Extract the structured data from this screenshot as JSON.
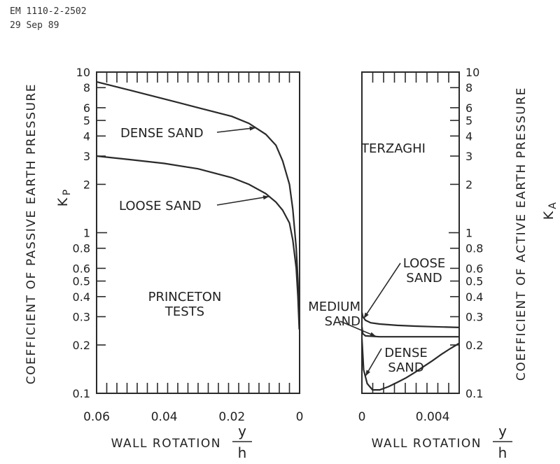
{
  "header": {
    "doc_id": "EM 1110-2-2502",
    "date": "29 Sep 89"
  },
  "chart_data": [
    {
      "type": "line",
      "panel": "passive",
      "ylabel": "COEFFICIENT OF PASSIVE EARTH PRESSURE",
      "ylabel_symbol": "K",
      "ylabel_sub": "P",
      "xlabel": "WALL ROTATION",
      "xlabel_num": "y",
      "xlabel_den": "h",
      "xlim": [
        0.06,
        0
      ],
      "ylim": [
        0.1,
        10
      ],
      "yscale": "log",
      "x_ticks": [
        "0.06",
        "0.04",
        "0.02",
        "0"
      ],
      "y_ticks": [
        "0.1",
        "0.2",
        "0.3",
        "0.4",
        "0.5",
        "0.6",
        "0.8",
        "1",
        "2",
        "3",
        "4",
        "5",
        "6",
        "8",
        "10"
      ],
      "annotation": [
        "PRINCETON",
        "TESTS"
      ],
      "series": [
        {
          "name": "DENSE SAND",
          "x": [
            0.06,
            0.05,
            0.04,
            0.03,
            0.02,
            0.015,
            0.01,
            0.007,
            0.005,
            0.003,
            0.002,
            0.001,
            0.0005,
            0.0001
          ],
          "y": [
            8.7,
            7.7,
            6.8,
            6.0,
            5.3,
            4.8,
            4.1,
            3.5,
            2.8,
            2.0,
            1.4,
            0.8,
            0.5,
            0.28
          ]
        },
        {
          "name": "LOOSE SAND",
          "x": [
            0.06,
            0.05,
            0.04,
            0.03,
            0.02,
            0.015,
            0.01,
            0.007,
            0.005,
            0.003,
            0.002,
            0.001,
            0.0005,
            0.0001
          ],
          "y": [
            3.0,
            2.85,
            2.7,
            2.5,
            2.2,
            2.0,
            1.75,
            1.55,
            1.38,
            1.15,
            0.9,
            0.6,
            0.4,
            0.25
          ]
        }
      ]
    },
    {
      "type": "line",
      "panel": "active",
      "ylabel": "COEFFICIENT OF ACTIVE EARTH PRESSURE",
      "ylabel_symbol": "K",
      "ylabel_sub": "A",
      "xlabel": "WALL ROTATION",
      "xlabel_num": "y",
      "xlabel_den": "h",
      "xlim": [
        0,
        0.0055
      ],
      "ylim": [
        0.1,
        10
      ],
      "yscale": "log",
      "x_ticks": [
        "0",
        "0.004"
      ],
      "y_ticks": [
        "0.1",
        "0.2",
        "0.3",
        "0.4",
        "0.5",
        "0.6",
        "0.8",
        "1",
        "2",
        "3",
        "4",
        "5",
        "6",
        "8",
        "10"
      ],
      "annotation": [
        "TERZAGHI"
      ],
      "series": [
        {
          "name": [
            "LOOSE",
            "SAND"
          ],
          "x": [
            0,
            5e-05,
            0.0002,
            0.0005,
            0.001,
            0.002,
            0.003,
            0.004,
            0.005,
            0.0055
          ],
          "y": [
            0.32,
            0.3,
            0.285,
            0.275,
            0.27,
            0.265,
            0.262,
            0.26,
            0.258,
            0.257
          ]
        },
        {
          "name": [
            "MEDIUM",
            "SAND"
          ],
          "x": [
            0,
            5e-05,
            0.0002,
            0.001,
            0.002,
            0.003,
            0.004,
            0.005,
            0.0055
          ],
          "y": [
            0.26,
            0.235,
            0.228,
            0.225,
            0.225,
            0.225,
            0.225,
            0.225,
            0.225
          ]
        },
        {
          "name": [
            "DENSE",
            "SAND"
          ],
          "x": [
            0,
            0.0001,
            0.0003,
            0.0006,
            0.001,
            0.0015,
            0.002,
            0.0025,
            0.003,
            0.0035,
            0.004,
            0.0045,
            0.005,
            0.0055
          ],
          "y": [
            0.22,
            0.14,
            0.115,
            0.105,
            0.105,
            0.11,
            0.117,
            0.125,
            0.135,
            0.147,
            0.16,
            0.175,
            0.19,
            0.205
          ]
        }
      ]
    }
  ]
}
